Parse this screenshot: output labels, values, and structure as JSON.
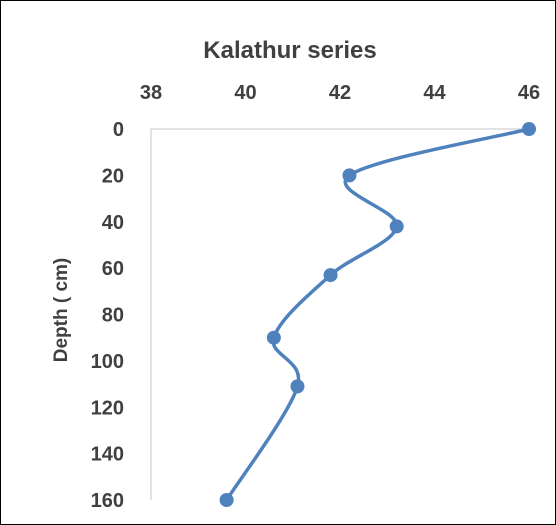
{
  "chart_data": {
    "type": "line",
    "title": "Kalathur series",
    "xlabel": "",
    "ylabel": "Depth ( cm)",
    "x_axis_position": "top",
    "y_axis_reversed": true,
    "smooth": true,
    "xlim": [
      38,
      46
    ],
    "ylim": [
      0,
      160
    ],
    "x_ticks": [
      "38",
      "40",
      "42",
      "44",
      "46"
    ],
    "y_ticks": [
      "0",
      "20",
      "40",
      "60",
      "80",
      "100",
      "120",
      "140",
      "160"
    ],
    "grid": false,
    "legend": "none",
    "series": [
      {
        "color": "#4f81bd",
        "points": [
          {
            "x": 46.0,
            "y": 0
          },
          {
            "x": 42.2,
            "y": 20
          },
          {
            "x": 43.2,
            "y": 42
          },
          {
            "x": 41.8,
            "y": 63
          },
          {
            "x": 40.6,
            "y": 90
          },
          {
            "x": 41.1,
            "y": 111
          },
          {
            "x": 39.6,
            "y": 160
          }
        ]
      }
    ]
  }
}
